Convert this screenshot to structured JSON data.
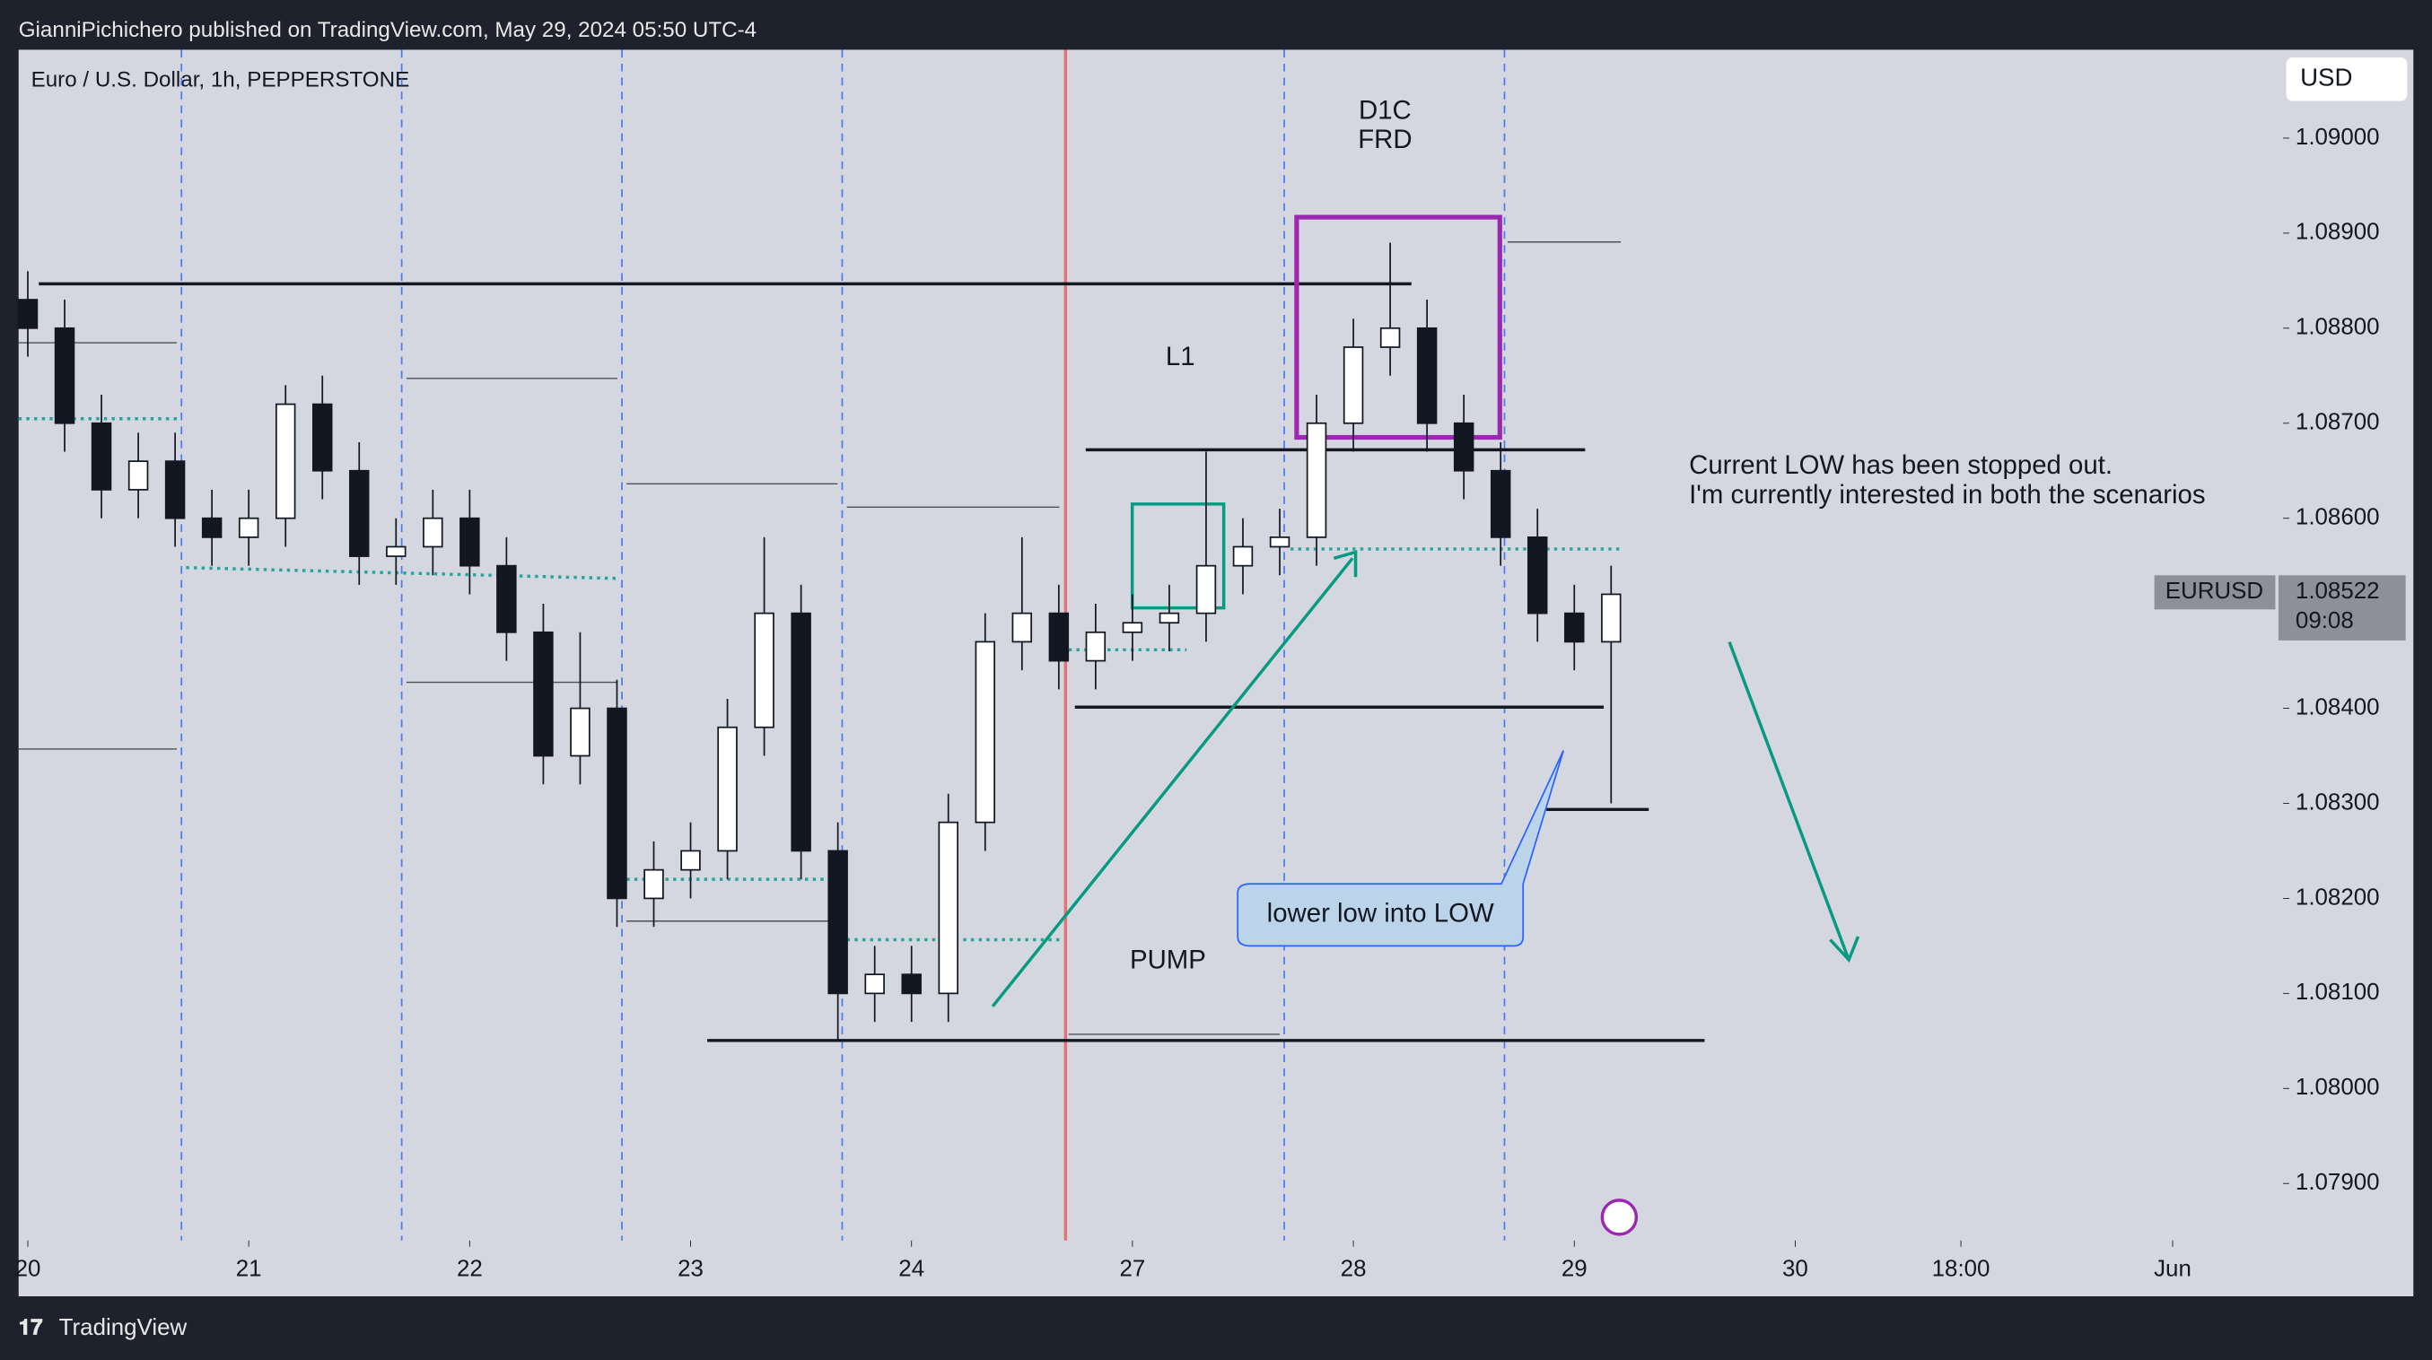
{
  "header": {
    "publisher": "GianniPichichero published on TradingView.com, May 29, 2024 05:50 UTC-4",
    "symbol": "Euro / U.S. Dollar, 1h, PEPPERSTONE",
    "currency": "USD",
    "footer": "TradingView"
  },
  "annotations": {
    "d1c": "D1C",
    "frd": "FRD",
    "l1": "L1",
    "pump": "PUMP",
    "note_line1": "Current LOW has been stopped out.",
    "note_line2": "I'm currently interested in both the scenarios",
    "callout": "lower low into LOW"
  },
  "price_label": {
    "symbol": "EURUSD",
    "price": 1.08522,
    "countdown": "09:08"
  },
  "chart_data": {
    "type": "candlestick",
    "x": [
      0,
      4,
      8,
      12,
      16,
      20,
      24,
      28,
      32,
      36,
      40,
      44,
      48,
      52,
      56,
      60,
      64,
      68,
      72,
      76,
      80,
      84,
      88,
      92,
      96,
      100,
      104,
      108,
      112,
      116,
      120,
      124,
      128,
      132,
      136,
      140,
      144,
      148,
      152,
      156,
      160,
      164,
      168,
      172
    ],
    "open": [
      1.0883,
      1.088,
      1.087,
      1.0863,
      1.0866,
      1.086,
      1.0858,
      1.086,
      1.0872,
      1.0865,
      1.0856,
      1.0857,
      1.086,
      1.0855,
      1.0848,
      1.0835,
      1.084,
      1.082,
      1.0823,
      1.0825,
      1.0838,
      1.085,
      1.0825,
      1.081,
      1.0812,
      1.081,
      1.0828,
      1.0847,
      1.085,
      1.0845,
      1.0848,
      1.0849,
      1.085,
      1.0855,
      1.0857,
      1.0858,
      1.087,
      1.0878,
      1.088,
      1.087,
      1.0865,
      1.0858,
      1.085,
      1.0847
    ],
    "high": [
      1.0886,
      1.0883,
      1.0873,
      1.0869,
      1.0869,
      1.0863,
      1.0863,
      1.0874,
      1.0875,
      1.0868,
      1.086,
      1.0863,
      1.0863,
      1.0858,
      1.0851,
      1.0848,
      1.0843,
      1.0826,
      1.0828,
      1.0841,
      1.0858,
      1.0853,
      1.0828,
      1.0815,
      1.0815,
      1.0831,
      1.085,
      1.0858,
      1.0853,
      1.0851,
      1.0852,
      1.0853,
      1.0867,
      1.086,
      1.0861,
      1.0873,
      1.0881,
      1.0889,
      1.0883,
      1.0873,
      1.0868,
      1.0861,
      1.0853,
      1.0855
    ],
    "low": [
      1.0877,
      1.0867,
      1.086,
      1.086,
      1.0857,
      1.0855,
      1.0855,
      1.0857,
      1.0862,
      1.0853,
      1.0853,
      1.0854,
      1.0852,
      1.0845,
      1.0832,
      1.0832,
      1.0817,
      1.0817,
      1.082,
      1.0822,
      1.0835,
      1.0822,
      1.0805,
      1.0807,
      1.0807,
      1.0807,
      1.0825,
      1.0844,
      1.0842,
      1.0842,
      1.0845,
      1.0846,
      1.0847,
      1.0852,
      1.0854,
      1.0855,
      1.0867,
      1.0875,
      1.0867,
      1.0862,
      1.0855,
      1.0847,
      1.0844,
      1.083
    ],
    "close": [
      1.088,
      1.087,
      1.0863,
      1.0866,
      1.086,
      1.0858,
      1.086,
      1.0872,
      1.0865,
      1.0856,
      1.0857,
      1.086,
      1.0855,
      1.0848,
      1.0835,
      1.084,
      1.082,
      1.0823,
      1.0825,
      1.0838,
      1.085,
      1.0825,
      1.081,
      1.0812,
      1.081,
      1.0828,
      1.0847,
      1.085,
      1.0845,
      1.0848,
      1.0849,
      1.085,
      1.0855,
      1.0857,
      1.0858,
      1.087,
      1.0878,
      1.088,
      1.087,
      1.0865,
      1.0858,
      1.085,
      1.0847,
      1.0852
    ],
    "up_color": "#ffffff",
    "down_color": "#131722",
    "xlim": [
      -1,
      245
    ],
    "xticks": [
      {
        "value": 0,
        "label": "20"
      },
      {
        "value": 24,
        "label": "21"
      },
      {
        "value": 48,
        "label": "22"
      },
      {
        "value": 72,
        "label": "23"
      },
      {
        "value": 96,
        "label": "24"
      },
      {
        "value": 120,
        "label": "27"
      },
      {
        "value": 144,
        "label": "28"
      },
      {
        "value": 168,
        "label": "29"
      },
      {
        "value": 192,
        "label": "30"
      },
      {
        "value": 210,
        "label": "18:00"
      },
      {
        "value": 233,
        "label": "Jun"
      }
    ],
    "ylim": [
      1.0784,
      1.09093
    ],
    "yticks": [
      {
        "value": 1.09,
        "label": "1.09000"
      },
      {
        "value": 1.089,
        "label": "1.08900"
      },
      {
        "value": 1.088,
        "label": "1.08800"
      },
      {
        "value": 1.087,
        "label": "1.08700"
      },
      {
        "value": 1.086,
        "label": "1.08600"
      },
      {
        "value": 1.084,
        "label": "1.08400"
      },
      {
        "value": 1.083,
        "label": "1.08300"
      },
      {
        "value": 1.082,
        "label": "1.08200"
      },
      {
        "value": 1.081,
        "label": "1.08100"
      },
      {
        "value": 1.08,
        "label": "1.08000"
      },
      {
        "value": 1.079,
        "label": "1.07900"
      }
    ]
  }
}
